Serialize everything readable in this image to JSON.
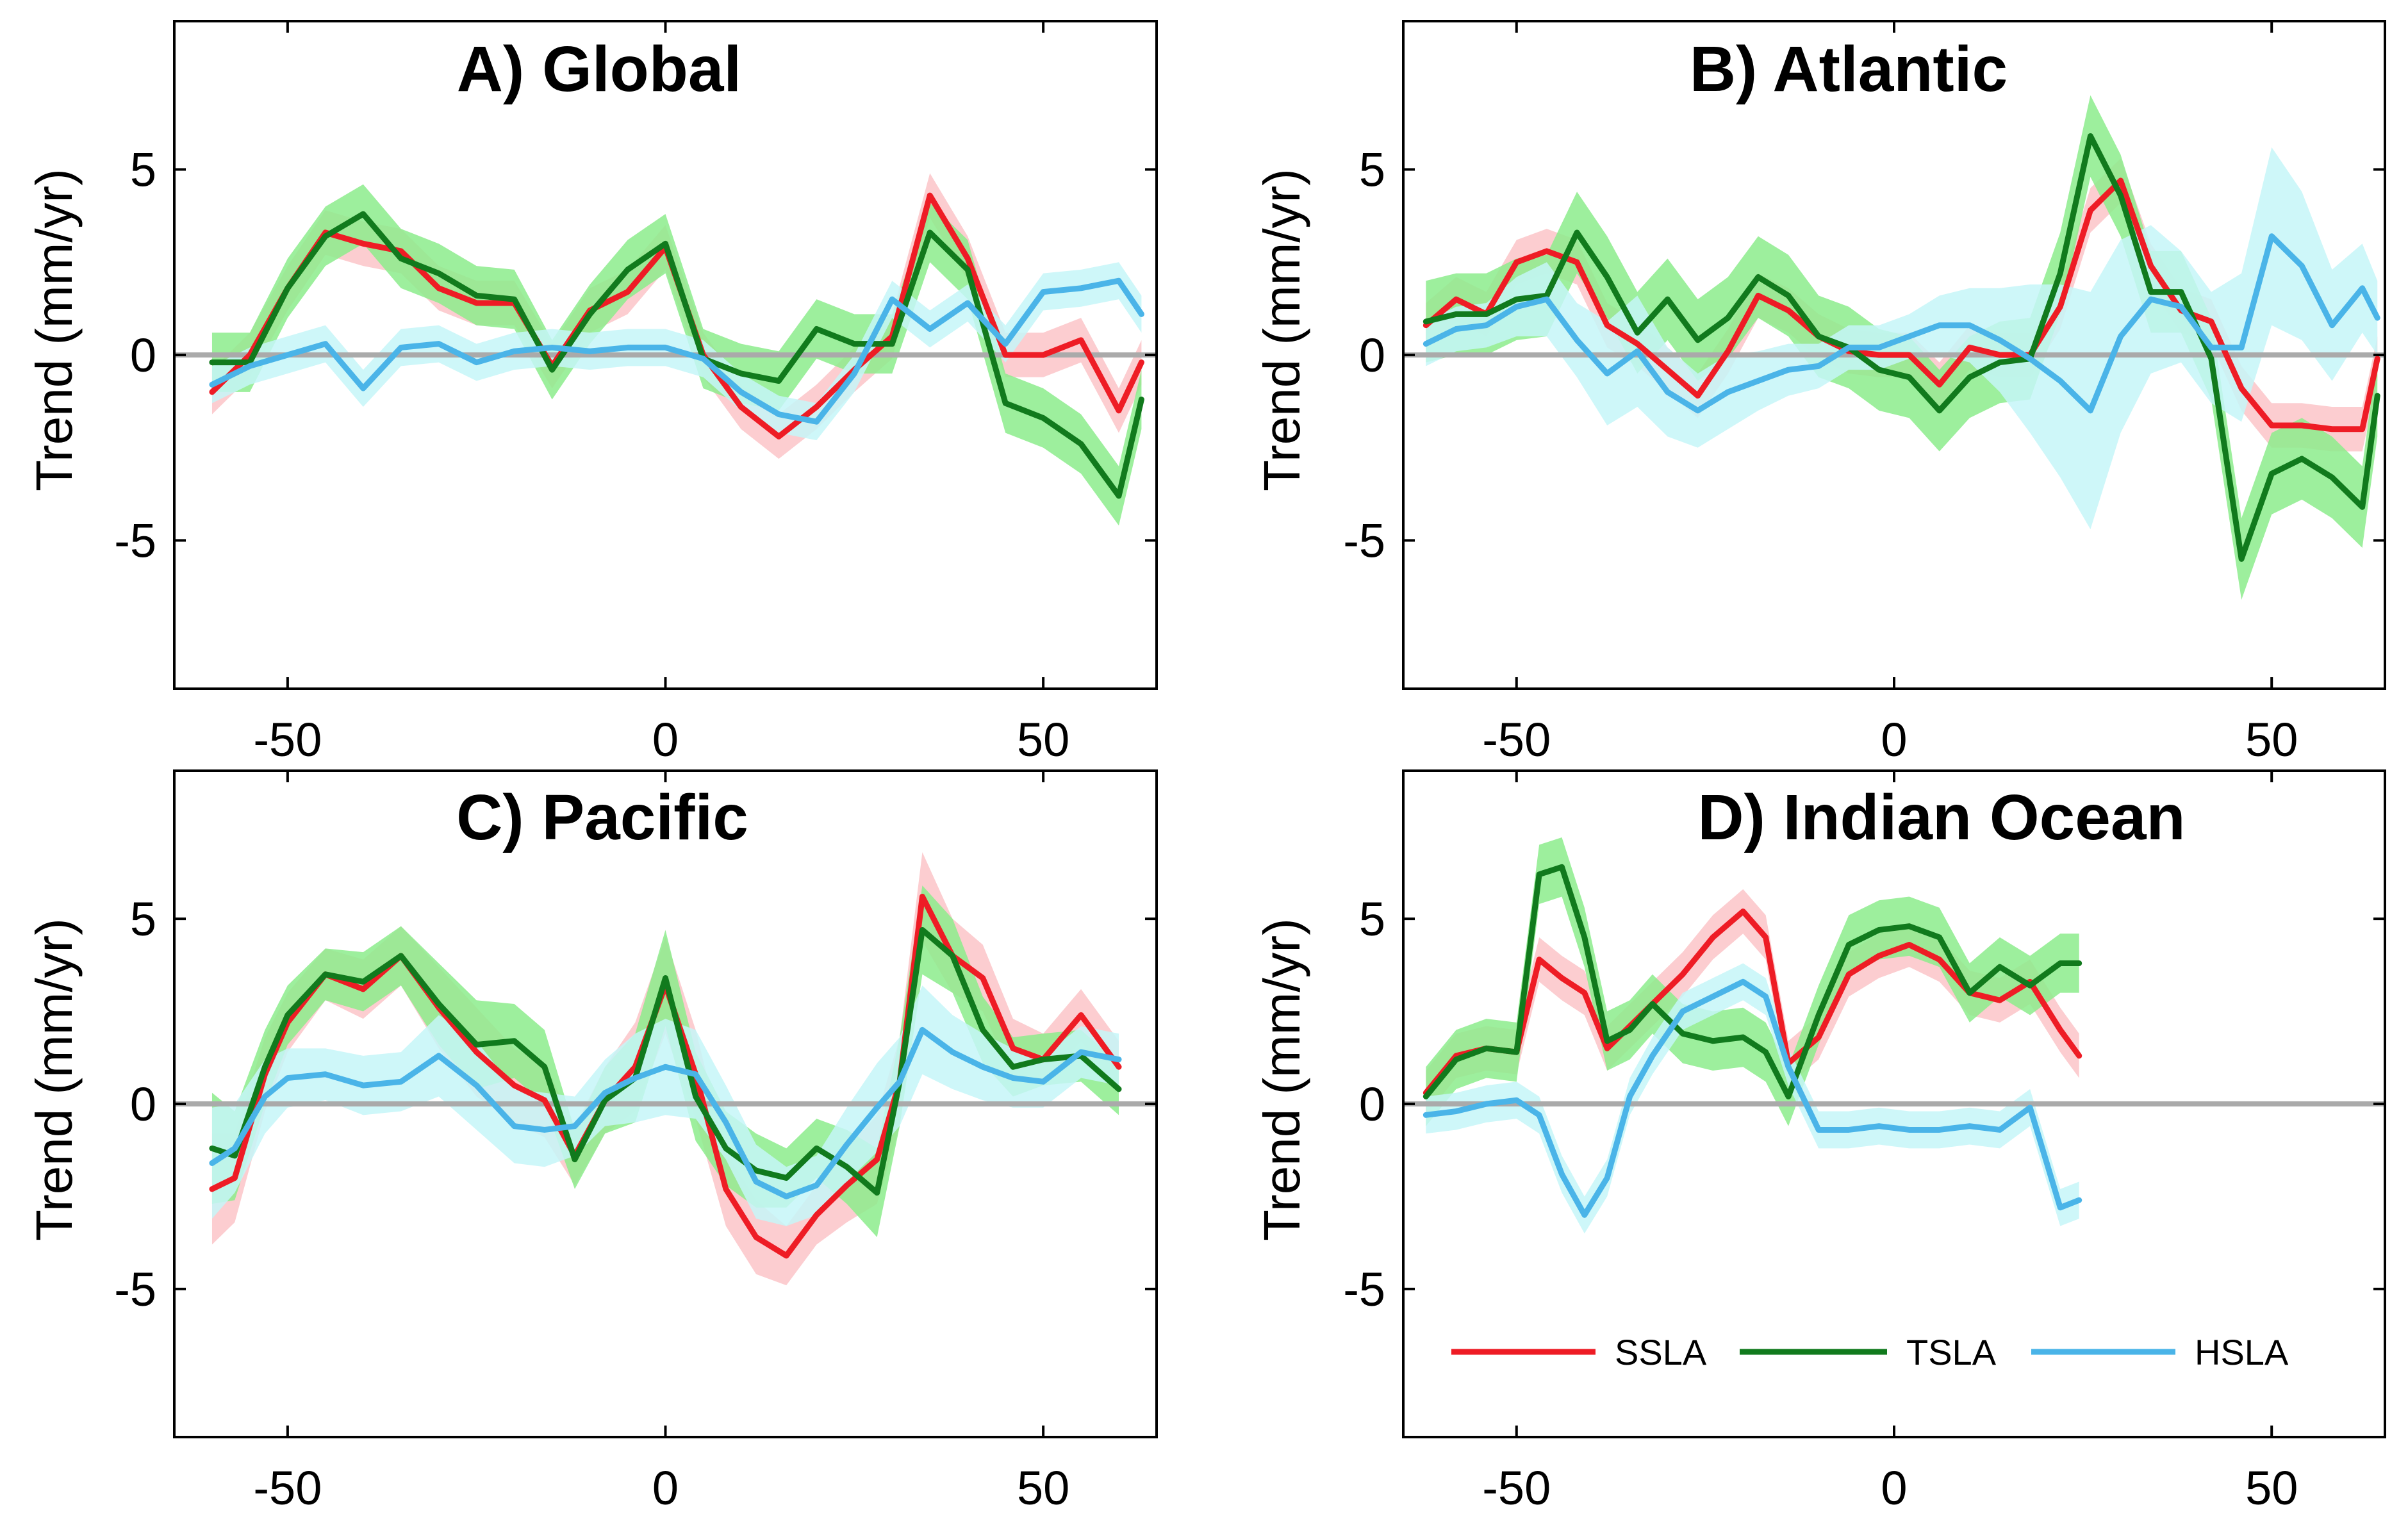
{
  "colors": {
    "SSLA": "#ee1c25",
    "SSLA_band": "#fbc4c8",
    "TSLA": "#117a1d",
    "TSLA_band": "#8cec8c",
    "HSLA": "#4ab4e8",
    "HSLA_band": "#c6f6f8",
    "zero_line": "#aaaaaa"
  },
  "chart_data": [
    {
      "type": "line",
      "title": "A) Global",
      "xlabel": "",
      "ylabel": "Trend (mm/yr)",
      "xlim": [
        -65,
        65
      ],
      "ylim": [
        -9,
        9
      ],
      "xticks": [
        -50,
        0,
        50
      ],
      "xtick_labels": [
        "-50",
        "0",
        "50"
      ],
      "yticks": [
        5,
        0,
        -5
      ],
      "ytick_labels": [
        "5",
        "0",
        "-5"
      ],
      "x": [
        -60,
        -55,
        -50,
        -45,
        -40,
        -35,
        -30,
        -25,
        -20,
        -15,
        -10,
        -5,
        0,
        5,
        10,
        15,
        20,
        25,
        30,
        35,
        40,
        45,
        50,
        55,
        60,
        63
      ],
      "series": [
        {
          "name": "SSLA",
          "values": [
            -1,
            0,
            1.8,
            3.3,
            3,
            2.8,
            1.8,
            1.4,
            1.4,
            -0.3,
            1.2,
            1.7,
            2.9,
            0,
            -1.4,
            -2.2,
            -1.4,
            -0.4,
            0.5,
            4.3,
            2.6,
            0,
            0,
            0.4,
            -1.5,
            -0.2
          ],
          "band": 0.6
        },
        {
          "name": "TSLA",
          "values": [
            -0.2,
            -0.2,
            1.8,
            3.2,
            3.8,
            2.6,
            2.2,
            1.6,
            1.5,
            -0.4,
            1.1,
            2.3,
            3,
            -0.1,
            -0.5,
            -0.7,
            0.7,
            0.3,
            0.3,
            3.3,
            2.3,
            -1.3,
            -1.7,
            -2.4,
            -3.8,
            -1.2
          ],
          "band": 0.8
        },
        {
          "name": "HSLA",
          "values": [
            -0.8,
            -0.3,
            0,
            0.3,
            -0.9,
            0.2,
            0.3,
            -0.2,
            0.1,
            0.2,
            0.1,
            0.2,
            0.2,
            -0.1,
            -1,
            -1.6,
            -1.8,
            -0.5,
            1.5,
            0.7,
            1.4,
            0.3,
            1.7,
            1.8,
            2,
            1.1
          ],
          "band": 0.5
        }
      ]
    },
    {
      "type": "line",
      "title": "B) Atlantic",
      "xlabel": "",
      "ylabel": "Trend (mm/yr)",
      "xlim": [
        -65,
        65
      ],
      "ylim": [
        -9,
        9
      ],
      "xticks": [
        -50,
        0,
        50
      ],
      "xtick_labels": [
        "-50",
        "0",
        "50"
      ],
      "yticks": [
        5,
        0,
        -5
      ],
      "ytick_labels": [
        "5",
        "0",
        "-5"
      ],
      "x": [
        -62,
        -58,
        -54,
        -50,
        -46,
        -42,
        -38,
        -34,
        -30,
        -26,
        -22,
        -18,
        -14,
        -10,
        -6,
        -2,
        2,
        6,
        10,
        14,
        18,
        22,
        26,
        30,
        34,
        38,
        42,
        46,
        50,
        54,
        58,
        62,
        64
      ],
      "series": [
        {
          "name": "SSLA",
          "values": [
            0.8,
            1.5,
            1.1,
            2.5,
            2.8,
            2.5,
            0.8,
            0.3,
            -0.4,
            -1.1,
            0.1,
            1.6,
            1.2,
            0.5,
            0.1,
            0,
            0,
            -0.8,
            0.2,
            0,
            0,
            1.3,
            3.9,
            4.7,
            2.4,
            1.2,
            0.9,
            -0.9,
            -1.9,
            -1.9,
            -2,
            -2,
            -0.1
          ],
          "band": 0.6
        },
        {
          "name": "TSLA",
          "values": [
            0.9,
            1.1,
            1.1,
            1.5,
            1.6,
            3.3,
            2.1,
            0.6,
            1.5,
            0.4,
            1,
            2.1,
            1.6,
            0.5,
            0.2,
            -0.4,
            -0.6,
            -1.5,
            -0.6,
            -0.2,
            -0.1,
            2.2,
            5.9,
            4.3,
            1.7,
            1.7,
            -0.1,
            -5.5,
            -3.2,
            -2.8,
            -3.3,
            -4.1,
            -1.1
          ],
          "band": 1.1
        },
        {
          "name": "HSLA",
          "values": [
            0.3,
            0.7,
            0.8,
            1.3,
            1.5,
            0.4,
            -0.5,
            0.1,
            -1,
            -1.5,
            -1,
            -0.7,
            -0.4,
            -0.3,
            0.2,
            0.2,
            0.5,
            0.8,
            0.8,
            0.4,
            -0.1,
            -0.7,
            -1.5,
            0.5,
            1.5,
            1.3,
            0.2,
            0.2,
            3.2,
            2.4,
            0.8,
            1.8,
            1
          ]
        },
        {
          "name": "HSLA_band_width",
          "values": [
            0.6,
            0.6,
            0.6,
            0.8,
            1,
            1,
            1.4,
            1.5,
            1.2,
            1,
            1,
            0.8,
            0.7,
            0.6,
            0.6,
            0.6,
            0.6,
            0.8,
            1,
            1.4,
            2,
            2.6,
            3.2,
            2.6,
            2,
            1.5,
            1.5,
            2,
            2.4,
            2,
            1.5,
            1.2,
            1
          ]
        }
      ]
    },
    {
      "type": "line",
      "title": "C) Pacific",
      "xlabel": "",
      "ylabel": "Trend (mm/yr)",
      "xlim": [
        -65,
        65
      ],
      "ylim": [
        -9,
        9
      ],
      "xticks": [
        -50,
        0,
        50
      ],
      "xtick_labels": [
        "-50",
        "0",
        "50"
      ],
      "yticks": [
        5,
        0,
        -5
      ],
      "ytick_labels": [
        "5",
        "0",
        "-5"
      ],
      "x": [
        -60,
        -57,
        -53,
        -50,
        -45,
        -40,
        -35,
        -30,
        -25,
        -20,
        -16,
        -12,
        -8,
        -4,
        0,
        4,
        8,
        12,
        16,
        20,
        24,
        28,
        31,
        34,
        38,
        42,
        46,
        50,
        55,
        60
      ],
      "series": [
        {
          "name": "SSLA",
          "values": [
            -2.3,
            -2,
            0.8,
            2.2,
            3.5,
            3.1,
            4,
            2.6,
            1.4,
            0.5,
            0.1,
            -1.4,
            0.1,
            1,
            3.2,
            0.8,
            -2.3,
            -3.6,
            -4.1,
            -3,
            -2.2,
            -1.5,
            0.6,
            5.6,
            4,
            3.4,
            1.5,
            1.2,
            2.4,
            1
          ]
        },
        {
          "name": "TSLA",
          "values": [
            -1.2,
            -1.4,
            1,
            2.4,
            3.5,
            3.3,
            4,
            2.7,
            1.6,
            1.7,
            1,
            -1.5,
            0.1,
            0.7,
            3.4,
            0.2,
            -1.2,
            -1.8,
            -2,
            -1.2,
            -1.7,
            -2.4,
            0.6,
            4.7,
            4,
            2,
            1,
            1.2,
            1.3,
            0.4
          ]
        },
        {
          "name": "HSLA",
          "values": [
            -1.6,
            -1.2,
            0.2,
            0.7,
            0.8,
            0.5,
            0.6,
            1.3,
            0.5,
            -0.6,
            -0.7,
            -0.6,
            0.3,
            0.7,
            1,
            0.8,
            -0.5,
            -2.1,
            -2.5,
            -2.2,
            -1.1,
            -0.1,
            0.6,
            2,
            1.4,
            1,
            0.7,
            0.6,
            1.4,
            1.2
          ]
        },
        {
          "name": "band_widths",
          "values": [
            1.5,
            1.2,
            1,
            0.8,
            0.7,
            0.8,
            0.8,
            1.1,
            1.2,
            1,
            1,
            0.8,
            0.9,
            1.2,
            1.3,
            1.2,
            1,
            1,
            0.8,
            0.8,
            1,
            1.2,
            1.2,
            1.2,
            1,
            0.9,
            0.8,
            0.7,
            0.7,
            0.7
          ]
        }
      ]
    },
    {
      "type": "line",
      "title": "D) Indian Ocean",
      "xlabel": "",
      "ylabel": "Trend (mm/yr)",
      "xlim": [
        -65,
        65
      ],
      "ylim": [
        -9,
        9
      ],
      "xticks": [
        -50,
        0,
        50
      ],
      "xtick_labels": [
        "-50",
        "0",
        "50"
      ],
      "yticks": [
        5,
        0,
        -5
      ],
      "ytick_labels": [
        "5",
        "0",
        "-5"
      ],
      "x": [
        -62,
        -58,
        -54,
        -50,
        -47,
        -44,
        -41,
        -38,
        -35,
        -32,
        -28,
        -24,
        -20,
        -17,
        -14,
        -10,
        -6,
        -2,
        2,
        6,
        10,
        14,
        18,
        22,
        24.5
      ],
      "series": [
        {
          "name": "SSLA",
          "values": [
            0.3,
            1.3,
            1.5,
            1.4,
            3.9,
            3.4,
            3,
            1.5,
            2.1,
            2.7,
            3.5,
            4.5,
            5.2,
            4.5,
            1.1,
            1.8,
            3.5,
            4,
            4.3,
            3.9,
            3,
            2.8,
            3.3,
            2,
            1.3
          ]
        },
        {
          "name": "TSLA",
          "values": [
            0.2,
            1.2,
            1.5,
            1.4,
            6.2,
            6.4,
            4.5,
            1.7,
            2,
            2.7,
            1.9,
            1.7,
            1.8,
            1.4,
            0.2,
            2.4,
            4.3,
            4.7,
            4.8,
            4.5,
            3,
            3.7,
            3.2,
            3.8,
            3.8
          ]
        },
        {
          "name": "HSLA",
          "values": [
            -0.3,
            -0.2,
            0,
            0.1,
            -0.3,
            -1.9,
            -3,
            -2,
            0.2,
            1.3,
            2.5,
            2.9,
            3.3,
            2.9,
            1,
            -0.7,
            -0.7,
            -0.6,
            -0.7,
            -0.7,
            -0.6,
            -0.7,
            -0.1,
            -2.8,
            -2.6
          ]
        }
      ],
      "legend": {
        "placement": "lower-right",
        "entries": [
          "SSLA",
          "TSLA",
          "HSLA"
        ]
      }
    }
  ]
}
